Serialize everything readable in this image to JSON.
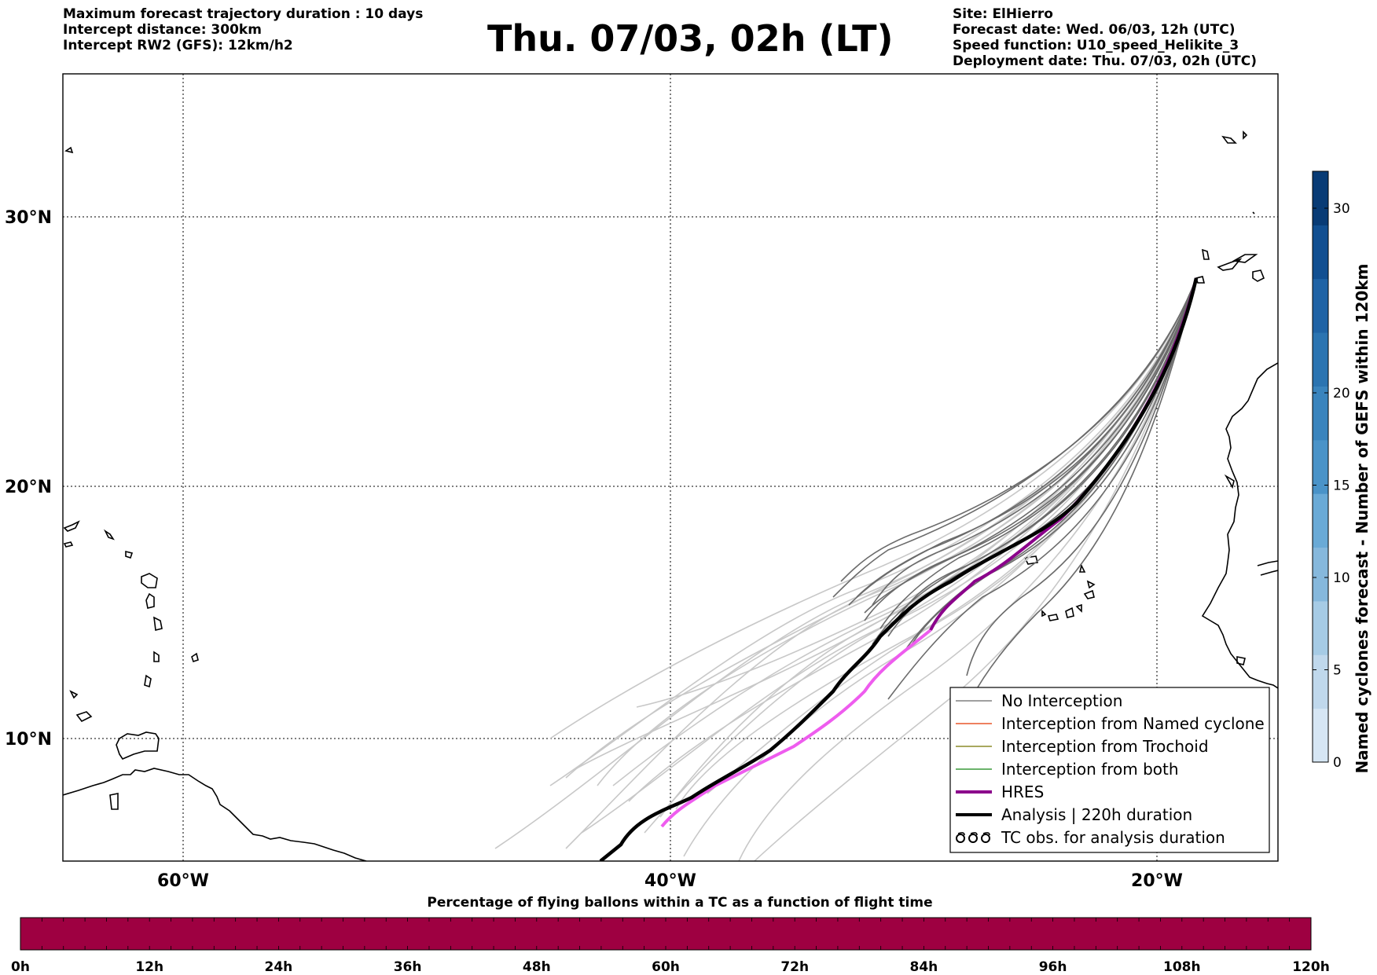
{
  "header": {
    "left": [
      "Maximum forecast trajectory duration : 10 days",
      "Intercept distance: 300km",
      "Intercept RW2 (GFS):  12km/h2"
    ],
    "title": "Thu. 07/03, 02h (LT)",
    "right": [
      "Site: ElHierro",
      "Forecast date: Wed. 06/03, 12h (UTC)",
      "Speed function: U10_speed_Helikite_3",
      "Deployment date: Thu. 07/03, 02h (UTC)"
    ]
  },
  "map": {
    "lat_labels": [
      "30°N",
      "20°N",
      "10°N"
    ],
    "lon_labels": [
      "60°W",
      "40°W",
      "20°W"
    ],
    "grid": true,
    "grid_style": "dotted"
  },
  "legend": {
    "position": "bottom-right",
    "items": [
      {
        "label": "No Interception",
        "color": "#808080",
        "style": "thin"
      },
      {
        "label": "Interception from Named cyclone",
        "color": "#e8572a",
        "style": "thin"
      },
      {
        "label": "Interception from Trochoid",
        "color": "#8b8b2a",
        "style": "thin"
      },
      {
        "label": "Interception from both",
        "color": "#3a9a3a",
        "style": "thin"
      },
      {
        "label": "HRES",
        "color": "#8b008b",
        "style": "thick"
      },
      {
        "label": "Analysis | 220h duration",
        "color": "#000000",
        "style": "thick"
      },
      {
        "label": "TC obs. for analysis duration",
        "color": "#000000",
        "style": "symbol"
      }
    ]
  },
  "colorbar": {
    "label": "Named cyclones forecast - Number of GEFS within 120km",
    "ticks": [
      "0",
      "5",
      "10",
      "15",
      "20",
      "30"
    ],
    "colors": [
      "#d6e6f4",
      "#c0d8ec",
      "#a6cbe5",
      "#86b8dc",
      "#6aaad6",
      "#4a93c8",
      "#3a84bd",
      "#2b74b1",
      "#1f63a5",
      "#114f91",
      "#083b75"
    ]
  },
  "percentage_bar": {
    "title": "Percentage of flying ballons within a TC as a function of flight time",
    "ticks": [
      "0h",
      "12h",
      "24h",
      "36h",
      "48h",
      "60h",
      "72h",
      "84h",
      "96h",
      "108h",
      "120h"
    ],
    "fill_color": "#9e0041",
    "percent_values": [
      0,
      0,
      0,
      0,
      0,
      0,
      0,
      0,
      0,
      0,
      0
    ]
  },
  "colors": {
    "no_interception": "#6b6b6b",
    "no_interception_light": "#c8c8c8",
    "hres": "#8b008b",
    "hres_light": "#ee5cee",
    "analysis": "#000000"
  }
}
